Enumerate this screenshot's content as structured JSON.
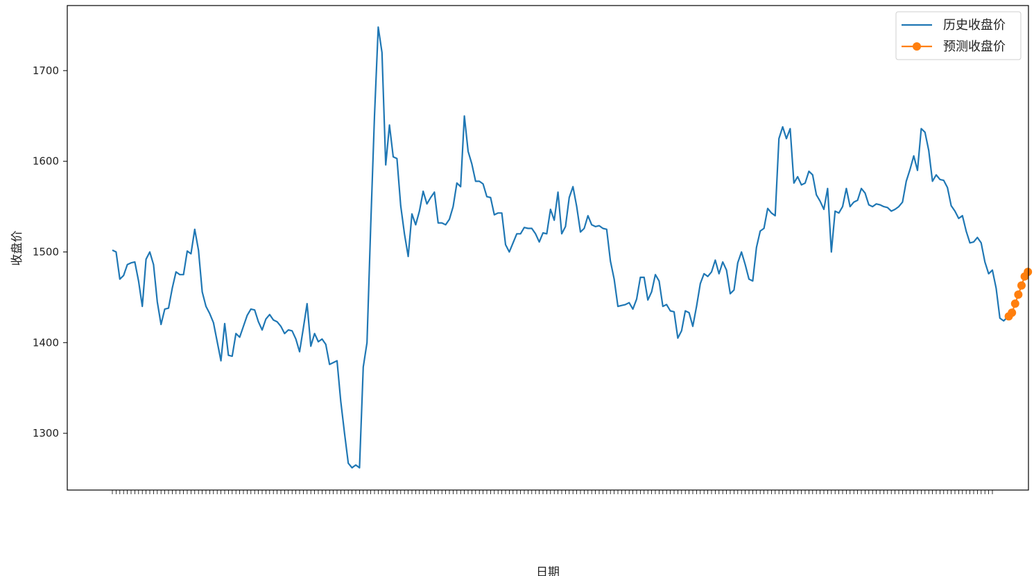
{
  "chart_data": {
    "type": "line",
    "title": "",
    "xlabel": "日期",
    "ylabel": "收盘价",
    "ylim": [
      1240,
      1775
    ],
    "yticks": [
      1300,
      1400,
      1500,
      1600,
      1700
    ],
    "ytick_labels": [
      "1300",
      "1400",
      "1500",
      "1600",
      "1700"
    ],
    "x_tick_count": 236,
    "x_tick_labels_note": "",
    "legend": {
      "placement": "upper-right"
    },
    "grid": false,
    "series": [
      {
        "name": "历史收盘价",
        "color": "#1f77b4",
        "marker": "none",
        "values": [
          1502,
          1500,
          1470,
          1474,
          1486,
          1488,
          1489,
          1468,
          1440,
          1492,
          1500,
          1486,
          1445,
          1420,
          1437,
          1438,
          1460,
          1478,
          1475,
          1475,
          1501,
          1498,
          1525,
          1502,
          1456,
          1440,
          1432,
          1422,
          1401,
          1380,
          1421,
          1386,
          1385,
          1410,
          1406,
          1418,
          1430,
          1437,
          1436,
          1423,
          1414,
          1426,
          1431,
          1425,
          1423,
          1418,
          1410,
          1414,
          1413,
          1404,
          1390,
          1416,
          1443,
          1396,
          1410,
          1401,
          1404,
          1398,
          1376,
          1378,
          1380,
          1335,
          1300,
          1267,
          1262,
          1265,
          1262,
          1373,
          1400,
          1530,
          1650,
          1748,
          1720,
          1596,
          1640,
          1605,
          1603,
          1551,
          1520,
          1495,
          1542,
          1530,
          1545,
          1567,
          1553,
          1560,
          1566,
          1532,
          1532,
          1530,
          1536,
          1550,
          1576,
          1572,
          1650,
          1611,
          1597,
          1578,
          1578,
          1575,
          1561,
          1560,
          1541,
          1543,
          1543,
          1508,
          1500,
          1510,
          1520,
          1520,
          1527,
          1526,
          1526,
          1520,
          1511,
          1521,
          1520,
          1547,
          1535,
          1566,
          1520,
          1528,
          1560,
          1572,
          1550,
          1522,
          1526,
          1540,
          1530,
          1528,
          1529,
          1526,
          1525,
          1490,
          1470,
          1440,
          1441,
          1442,
          1444,
          1437,
          1448,
          1472,
          1472,
          1447,
          1456,
          1475,
          1468,
          1440,
          1442,
          1435,
          1434,
          1405,
          1413,
          1435,
          1433,
          1418,
          1440,
          1465,
          1476,
          1473,
          1478,
          1491,
          1476,
          1489,
          1480,
          1454,
          1458,
          1488,
          1500,
          1486,
          1470,
          1468,
          1505,
          1523,
          1526,
          1548,
          1543,
          1540,
          1625,
          1638,
          1625,
          1636,
          1576,
          1583,
          1574,
          1576,
          1589,
          1585,
          1563,
          1556,
          1547,
          1570,
          1500,
          1545,
          1543,
          1550,
          1570,
          1550,
          1555,
          1557,
          1570,
          1565,
          1552,
          1550,
          1553,
          1552,
          1550,
          1549,
          1545,
          1547,
          1550,
          1555,
          1578,
          1591,
          1606,
          1590,
          1636,
          1632,
          1612,
          1578,
          1585,
          1580,
          1579,
          1571,
          1551,
          1545,
          1537,
          1540,
          1523,
          1510,
          1511,
          1516,
          1510,
          1489,
          1476,
          1480,
          1460,
          1427,
          1424,
          1428
        ]
      },
      {
        "name": "预测收盘价",
        "color": "#ff7f0e",
        "marker": "circle",
        "values": [
          1429,
          1433,
          1443,
          1453,
          1463,
          1473,
          1478
        ]
      }
    ]
  }
}
